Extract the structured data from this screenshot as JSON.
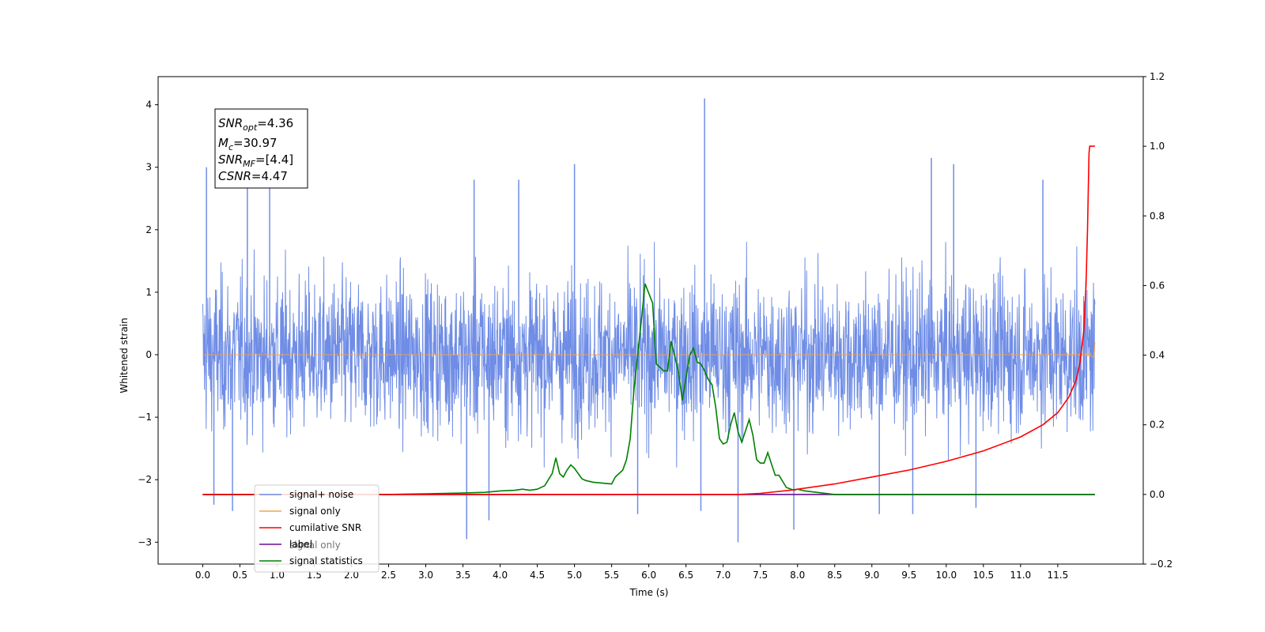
{
  "chart_data": {
    "type": "line",
    "xlabel": "Time (s)",
    "ylabel": "Whitened strain",
    "xlim": [
      -0.6,
      12.65
    ],
    "ylim": [
      -3.35,
      4.45
    ],
    "y2lim": [
      -0.2,
      1.2
    ],
    "xticks": [
      "0.0",
      "0.5",
      "1.0",
      "1.5",
      "2.0",
      "2.5",
      "3.0",
      "3.5",
      "4.0",
      "4.5",
      "5.0",
      "5.5",
      "6.0",
      "6.5",
      "7.0",
      "7.5",
      "8.0",
      "8.5",
      "9.0",
      "9.5",
      "10.0",
      "10.5",
      "11.0",
      "11.5"
    ],
    "yticks": [
      "−3",
      "−2",
      "−1",
      "0",
      "1",
      "2",
      "3",
      "4"
    ],
    "y2ticks": [
      "−0.2",
      "0.0",
      "0.2",
      "0.4",
      "0.6",
      "0.8",
      "1.0",
      "1.2"
    ],
    "annotation": {
      "snr_opt": "=4.36",
      "mc": "=30.97",
      "snr_mf": "=[4.4]",
      "csnr": "=4.47"
    },
    "legend": {
      "position": "lower-left",
      "entries": [
        "signal+ noise",
        "signal only",
        "cumilative SNR",
        "label",
        "signal statistics"
      ],
      "hidden_entry": "signal only"
    },
    "colors": {
      "noise": "#6f8de6",
      "signal": "#f2a352",
      "csnr": "#ff0000",
      "label": "#6a0d91",
      "stats": "#008000"
    },
    "series": [
      {
        "name": "signal+ noise",
        "axis": "left",
        "duration": 12.0,
        "envelope_max": 1.9,
        "envelope_min": -1.9,
        "spikes": [
          {
            "x": 0.05,
            "y": 3.0
          },
          {
            "x": 0.6,
            "y": 2.9
          },
          {
            "x": 0.9,
            "y": 2.7
          },
          {
            "x": 3.65,
            "y": 2.8
          },
          {
            "x": 4.25,
            "y": 2.8
          },
          {
            "x": 5.0,
            "y": 3.05
          },
          {
            "x": 6.75,
            "y": 4.1
          },
          {
            "x": 9.8,
            "y": 3.15
          },
          {
            "x": 10.1,
            "y": 3.05
          },
          {
            "x": 11.3,
            "y": 2.8
          },
          {
            "x": 3.55,
            "y": -2.95
          },
          {
            "x": 3.85,
            "y": -2.65
          },
          {
            "x": 7.2,
            "y": -3.0
          },
          {
            "x": 0.15,
            "y": -2.4
          },
          {
            "x": 0.4,
            "y": -2.5
          },
          {
            "x": 5.85,
            "y": -2.55
          },
          {
            "x": 7.95,
            "y": -2.8
          },
          {
            "x": 9.55,
            "y": -2.55
          },
          {
            "x": 9.1,
            "y": -2.55
          },
          {
            "x": 6.7,
            "y": -2.5
          },
          {
            "x": 10.4,
            "y": -2.45
          }
        ]
      },
      {
        "name": "signal only",
        "axis": "left",
        "chirp_end": 12.0,
        "chirp_amp_end": 0.8
      },
      {
        "name": "cumilative SNR",
        "axis": "right",
        "x": [
          0.0,
          7.2,
          7.5,
          7.9,
          8.5,
          9.0,
          9.5,
          10.0,
          10.5,
          11.0,
          11.3,
          11.5,
          11.65,
          11.75,
          11.8,
          11.85,
          11.88,
          11.9,
          11.92,
          11.93,
          12.0
        ],
        "values": [
          0.0,
          0.0,
          0.003,
          0.012,
          0.03,
          0.05,
          0.07,
          0.095,
          0.125,
          0.165,
          0.2,
          0.235,
          0.28,
          0.33,
          0.38,
          0.47,
          0.6,
          0.76,
          0.98,
          1.0,
          1.0
        ]
      },
      {
        "name": "label",
        "axis": "right",
        "x": [
          0.0,
          12.0
        ],
        "values": [
          0.0,
          0.0
        ]
      },
      {
        "name": "signal statistics",
        "axis": "right",
        "x": [
          0.0,
          2.5,
          3.0,
          3.5,
          3.8,
          4.0,
          4.2,
          4.3,
          4.4,
          4.5,
          4.6,
          4.7,
          4.75,
          4.8,
          4.85,
          4.9,
          4.95,
          5.0,
          5.1,
          5.15,
          5.25,
          5.5,
          5.55,
          5.65,
          5.7,
          5.75,
          5.8,
          5.9,
          5.95,
          6.05,
          6.1,
          6.2,
          6.25,
          6.3,
          6.4,
          6.45,
          6.55,
          6.6,
          6.65,
          6.7,
          6.75,
          6.8,
          6.85,
          6.9,
          6.95,
          7.0,
          7.05,
          7.1,
          7.15,
          7.2,
          7.25,
          7.35,
          7.4,
          7.45,
          7.5,
          7.55,
          7.6,
          7.7,
          7.75,
          7.85,
          7.95,
          8.0,
          8.1,
          8.5,
          12.0
        ],
        "values": [
          0.0,
          0.0,
          0.002,
          0.004,
          0.006,
          0.01,
          0.012,
          0.015,
          0.012,
          0.015,
          0.025,
          0.06,
          0.105,
          0.06,
          0.05,
          0.07,
          0.085,
          0.075,
          0.045,
          0.04,
          0.035,
          0.03,
          0.05,
          0.07,
          0.1,
          0.16,
          0.3,
          0.5,
          0.605,
          0.55,
          0.375,
          0.355,
          0.355,
          0.44,
          0.35,
          0.27,
          0.4,
          0.42,
          0.38,
          0.375,
          0.355,
          0.33,
          0.315,
          0.25,
          0.16,
          0.145,
          0.15,
          0.2,
          0.235,
          0.18,
          0.15,
          0.215,
          0.17,
          0.1,
          0.09,
          0.09,
          0.12,
          0.055,
          0.055,
          0.02,
          0.012,
          0.015,
          0.01,
          0.0,
          0.0
        ]
      }
    ]
  }
}
